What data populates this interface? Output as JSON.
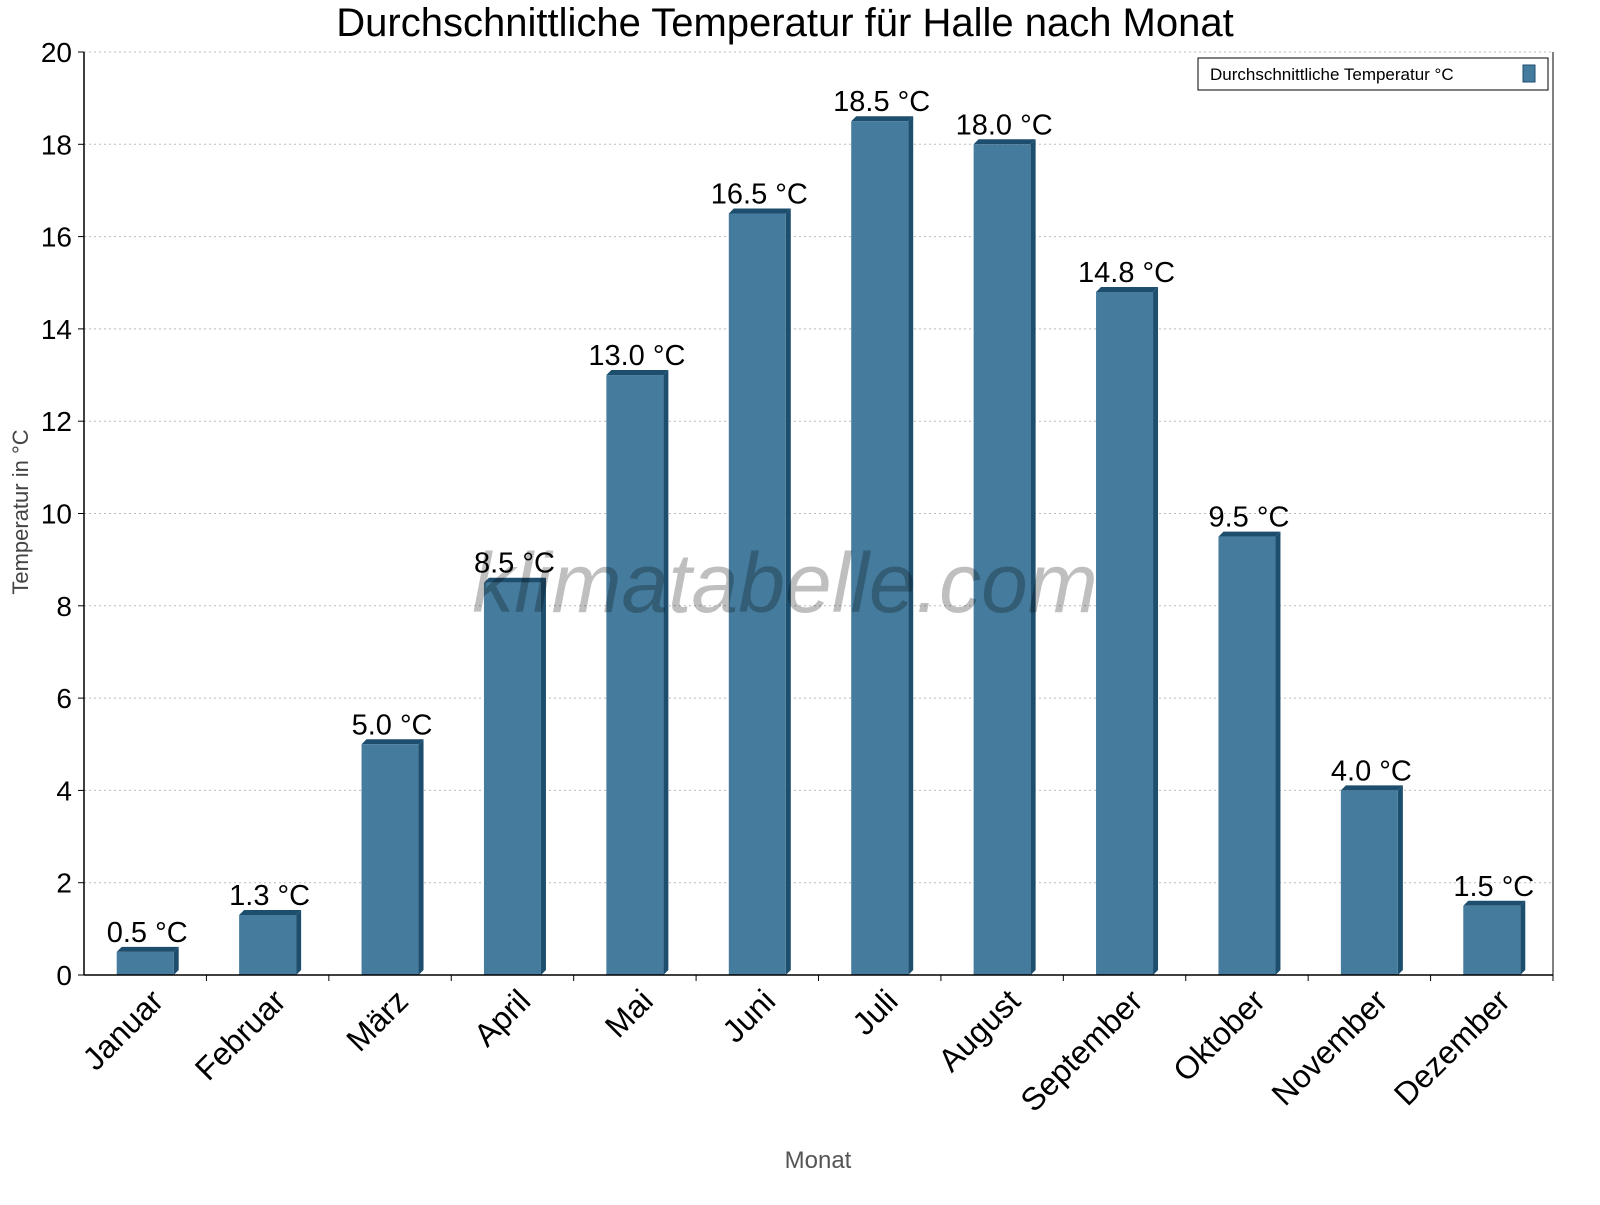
{
  "chart_data": {
    "type": "bar",
    "title": "Durchschnittliche Temperatur für Halle nach Monat",
    "xlabel": "Monat",
    "ylabel": "Temperatur in °C",
    "categories": [
      "Januar",
      "Februar",
      "März",
      "April",
      "Mai",
      "Juni",
      "Juli",
      "August",
      "September",
      "Oktober",
      "November",
      "Dezember"
    ],
    "series": [
      {
        "name": "Durchschnittliche Temperatur °C",
        "values": [
          0.5,
          1.3,
          5.0,
          8.5,
          13.0,
          16.5,
          18.5,
          18.0,
          14.8,
          9.5,
          4.0,
          1.5
        ],
        "color": "#457b9d",
        "edge_color": "#1d4e6e"
      }
    ],
    "data_labels": [
      "0.5 °C",
      "1.3 °C",
      "5.0 °C",
      "8.5 °C",
      "13.0 °C",
      "16.5 °C",
      "18.5 °C",
      "18.0 °C",
      "14.8 °C",
      "9.5 °C",
      "4.0 °C",
      "1.5 °C"
    ],
    "ylim": [
      0,
      20
    ],
    "yticks": [
      "0",
      "2",
      "4",
      "6",
      "8",
      "10",
      "12",
      "14",
      "16",
      "18",
      "20"
    ],
    "grid": "horizontal dotted",
    "legend": "top-right",
    "watermark": "klimatabelle.com"
  }
}
